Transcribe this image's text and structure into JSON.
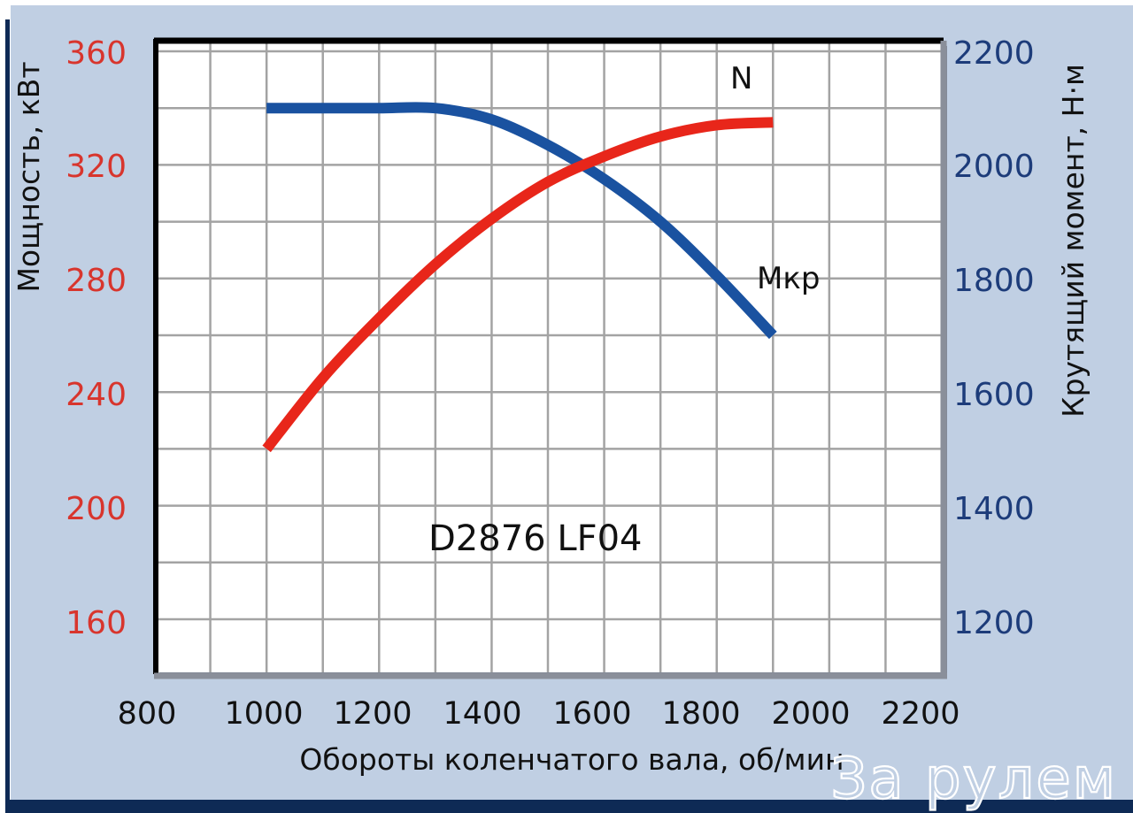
{
  "chart_data": {
    "type": "line",
    "title": "D2876 LF04",
    "xlabel": "Обороты коленчатого вала, об/мин",
    "ylabel_left": "Мощность, кВт",
    "ylabel_right": "Крутящий момент, Н·м",
    "xlim": [
      800,
      2200
    ],
    "ylim_left": [
      160,
      360
    ],
    "ylim_right": [
      1200,
      2200
    ],
    "x_ticks": [
      800,
      1000,
      1200,
      1400,
      1600,
      1800,
      2000,
      2200
    ],
    "y_left_ticks": [
      360,
      320,
      280,
      240,
      200,
      160
    ],
    "y_right_ticks": [
      2200,
      2000,
      1800,
      1600,
      1400,
      1200
    ],
    "grid": true,
    "legend": "inline labels",
    "series": [
      {
        "name": "N",
        "axis": "left",
        "unit": "кВт",
        "color": "#e8261a",
        "x": [
          1000,
          1100,
          1200,
          1300,
          1400,
          1500,
          1600,
          1700,
          1800,
          1900
        ],
        "values": [
          220,
          245,
          266,
          285,
          301,
          314,
          323,
          330,
          334,
          335
        ]
      },
      {
        "name": "Мкр",
        "axis": "right",
        "unit": "Н·м",
        "color": "#1a52a0",
        "x": [
          1000,
          1100,
          1200,
          1300,
          1400,
          1500,
          1600,
          1700,
          1800,
          1900
        ],
        "values": [
          2100,
          2100,
          2100,
          2100,
          2080,
          2035,
          1975,
          1900,
          1805,
          1700
        ]
      }
    ]
  },
  "labels": {
    "series_n": "N",
    "series_mkr": "Мкр",
    "model": "D2876 LF04",
    "xlabel": "Обороты коленчатого вала, об/мин",
    "ylabel_left": "Мощность, кВт",
    "ylabel_right": "Крутящий момент, Н·м",
    "watermark": "За рулем"
  },
  "ticks": {
    "x": [
      "800",
      "1000",
      "1200",
      "1400",
      "1600",
      "1800",
      "2000",
      "2200"
    ],
    "left": [
      "360",
      "320",
      "280",
      "240",
      "200",
      "160"
    ],
    "right": [
      "2200",
      "2000",
      "1800",
      "1600",
      "1400",
      "1200"
    ]
  },
  "colors": {
    "power": "#e8261a",
    "torque": "#1a52a0",
    "left_ticks": "#d8352d",
    "right_ticks": "#1d3c7a",
    "background": "#c0cfe3",
    "frame": "#0e2a55"
  }
}
